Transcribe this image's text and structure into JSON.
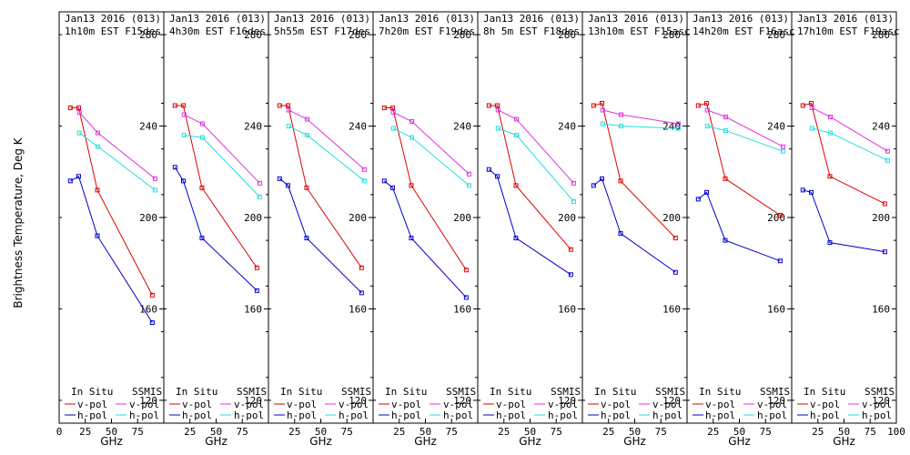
{
  "figure": {
    "ylabel": "Brightness Temperature, Deg K",
    "xlabel": "GHz",
    "legend": {
      "insitu": "In Situ",
      "ssmis": "SSMIS",
      "vpol": "v-pol",
      "hpol": "h-pol"
    },
    "colors": {
      "insitu_v": "#dd0000",
      "insitu_h": "#0000cc",
      "ssmis_v": "#dd33dd",
      "ssmis_h": "#22dddd"
    }
  },
  "chart_data": [
    {
      "type": "line",
      "title": "Jan13 2016 (013)",
      "subtitle": "1h10m EST F15des",
      "xlabel": "GHz",
      "ylabel": "Brightness Temperature, Deg K",
      "xlim": [
        0,
        100
      ],
      "ylim": [
        110,
        290
      ],
      "xticks": [
        "0",
        "25",
        "50",
        "75"
      ],
      "yticks": [
        "120",
        "160",
        "200",
        "240",
        "280"
      ],
      "series": [
        {
          "name": "In Situ v-pol",
          "x": [
            10.7,
            18.7,
            36.5,
            89
          ],
          "y": [
            248,
            248,
            212,
            166
          ]
        },
        {
          "name": "In Situ h-pol",
          "x": [
            10.7,
            18.7,
            36.5,
            89
          ],
          "y": [
            216,
            218,
            192,
            154
          ]
        },
        {
          "name": "SSMIS v-pol",
          "x": [
            19.35,
            37,
            91.65
          ],
          "y": [
            246,
            237,
            217
          ]
        },
        {
          "name": "SSMIS h-pol",
          "x": [
            19.35,
            37,
            91.65
          ],
          "y": [
            237,
            231,
            212
          ]
        }
      ]
    },
    {
      "type": "line",
      "title": "Jan13 2016 (013)",
      "subtitle": "4h30m EST F16des",
      "xlabel": "GHz",
      "ylabel": "Brightness Temperature, Deg K",
      "xlim": [
        0,
        100
      ],
      "ylim": [
        110,
        290
      ],
      "xticks": [
        "25",
        "50",
        "75"
      ],
      "yticks": [
        "120",
        "160",
        "200",
        "240",
        "280"
      ],
      "series": [
        {
          "name": "In Situ v-pol",
          "x": [
            10.7,
            18.7,
            36.5,
            89
          ],
          "y": [
            249,
            249,
            213,
            178
          ]
        },
        {
          "name": "In Situ h-pol",
          "x": [
            10.7,
            18.7,
            36.5,
            89
          ],
          "y": [
            222,
            216,
            191,
            168
          ]
        },
        {
          "name": "SSMIS v-pol",
          "x": [
            19.35,
            37,
            91.65
          ],
          "y": [
            245,
            241,
            215
          ]
        },
        {
          "name": "SSMIS h-pol",
          "x": [
            19.35,
            37,
            91.65
          ],
          "y": [
            236,
            235,
            209
          ]
        }
      ]
    },
    {
      "type": "line",
      "title": "Jan13 2016 (013)",
      "subtitle": "5h55m EST F17des",
      "xlabel": "GHz",
      "ylabel": "Brightness Temperature, Deg K",
      "xlim": [
        0,
        100
      ],
      "ylim": [
        110,
        290
      ],
      "xticks": [
        "25",
        "50",
        "75"
      ],
      "yticks": [
        "120",
        "160",
        "200",
        "240",
        "280"
      ],
      "series": [
        {
          "name": "In Situ v-pol",
          "x": [
            10.7,
            18.7,
            36.5,
            89
          ],
          "y": [
            249,
            249,
            213,
            178
          ]
        },
        {
          "name": "In Situ h-pol",
          "x": [
            10.7,
            18.7,
            36.5,
            89
          ],
          "y": [
            217,
            214,
            191,
            167
          ]
        },
        {
          "name": "SSMIS v-pol",
          "x": [
            19.35,
            37,
            91.65
          ],
          "y": [
            247,
            243,
            221
          ]
        },
        {
          "name": "SSMIS h-pol",
          "x": [
            19.35,
            37,
            91.65
          ],
          "y": [
            240,
            236,
            216
          ]
        }
      ]
    },
    {
      "type": "line",
      "title": "Jan13 2016 (013)",
      "subtitle": "7h20m EST F19des",
      "xlabel": "GHz",
      "ylabel": "Brightness Temperature, Deg K",
      "xlim": [
        0,
        100
      ],
      "ylim": [
        110,
        290
      ],
      "xticks": [
        "25",
        "50",
        "75"
      ],
      "yticks": [
        "120",
        "160",
        "200",
        "240",
        "280"
      ],
      "series": [
        {
          "name": "In Situ v-pol",
          "x": [
            10.7,
            18.7,
            36.5,
            89
          ],
          "y": [
            248,
            248,
            214,
            177
          ]
        },
        {
          "name": "In Situ h-pol",
          "x": [
            10.7,
            18.7,
            36.5,
            89
          ],
          "y": [
            216,
            213,
            191,
            165
          ]
        },
        {
          "name": "SSMIS v-pol",
          "x": [
            19.35,
            37,
            91.65
          ],
          "y": [
            246,
            242,
            219
          ]
        },
        {
          "name": "SSMIS h-pol",
          "x": [
            19.35,
            37,
            91.65
          ],
          "y": [
            239,
            235,
            214
          ]
        }
      ]
    },
    {
      "type": "line",
      "title": "Jan13 2016 (013)",
      "subtitle": "8h 5m EST F18des",
      "xlabel": "GHz",
      "ylabel": "Brightness Temperature, Deg K",
      "xlim": [
        0,
        100
      ],
      "ylim": [
        110,
        290
      ],
      "xticks": [
        "25",
        "50",
        "75"
      ],
      "yticks": [
        "120",
        "160",
        "200",
        "240",
        "280"
      ],
      "series": [
        {
          "name": "In Situ v-pol",
          "x": [
            10.7,
            18.7,
            36.5,
            89
          ],
          "y": [
            249,
            249,
            214,
            186
          ]
        },
        {
          "name": "In Situ h-pol",
          "x": [
            10.7,
            18.7,
            36.5,
            89
          ],
          "y": [
            221,
            218,
            191,
            175
          ]
        },
        {
          "name": "SSMIS v-pol",
          "x": [
            19.35,
            37,
            91.65
          ],
          "y": [
            247,
            243,
            215
          ]
        },
        {
          "name": "SSMIS h-pol",
          "x": [
            19.35,
            37,
            91.65
          ],
          "y": [
            239,
            236,
            207
          ]
        }
      ]
    },
    {
      "type": "line",
      "title": "Jan13 2016 (013)",
      "subtitle": "13h10m EST F15asc",
      "xlabel": "GHz",
      "ylabel": "Brightness Temperature, Deg K",
      "xlim": [
        0,
        100
      ],
      "ylim": [
        110,
        290
      ],
      "xticks": [
        "25",
        "50",
        "75"
      ],
      "yticks": [
        "120",
        "160",
        "200",
        "240",
        "280"
      ],
      "series": [
        {
          "name": "In Situ v-pol",
          "x": [
            10.7,
            18.7,
            36.5,
            89
          ],
          "y": [
            249,
            250,
            216,
            191
          ]
        },
        {
          "name": "In Situ h-pol",
          "x": [
            10.7,
            18.7,
            36.5,
            89
          ],
          "y": [
            214,
            217,
            193,
            176
          ]
        },
        {
          "name": "SSMIS v-pol",
          "x": [
            19.35,
            37,
            91.65
          ],
          "y": [
            247,
            245,
            241
          ]
        },
        {
          "name": "SSMIS h-pol",
          "x": [
            19.35,
            37,
            91.65
          ],
          "y": [
            241,
            240,
            239
          ]
        }
      ]
    },
    {
      "type": "line",
      "title": "Jan13 2016 (013)",
      "subtitle": "14h20m EST F16asc",
      "xlabel": "GHz",
      "ylabel": "Brightness Temperature, Deg K",
      "xlim": [
        0,
        100
      ],
      "ylim": [
        110,
        290
      ],
      "xticks": [
        "25",
        "50",
        "75"
      ],
      "yticks": [
        "120",
        "160",
        "200",
        "240",
        "280"
      ],
      "series": [
        {
          "name": "In Situ v-pol",
          "x": [
            10.7,
            18.7,
            36.5,
            89
          ],
          "y": [
            249,
            250,
            217,
            201
          ]
        },
        {
          "name": "In Situ h-pol",
          "x": [
            10.7,
            18.7,
            36.5,
            89
          ],
          "y": [
            208,
            211,
            190,
            181
          ]
        },
        {
          "name": "SSMIS v-pol",
          "x": [
            19.35,
            37,
            91.65
          ],
          "y": [
            247,
            244,
            231
          ]
        },
        {
          "name": "SSMIS h-pol",
          "x": [
            19.35,
            37,
            91.65
          ],
          "y": [
            240,
            238,
            229
          ]
        }
      ]
    },
    {
      "type": "line",
      "title": "Jan13 2016 (013)",
      "subtitle": "17h10m EST F19asc",
      "xlabel": "GHz",
      "ylabel": "Brightness Temperature, Deg K",
      "xlim": [
        0,
        100
      ],
      "ylim": [
        110,
        290
      ],
      "xticks": [
        "25",
        "50",
        "75",
        "100"
      ],
      "yticks": [
        "120",
        "160",
        "200",
        "240",
        "280"
      ],
      "series": [
        {
          "name": "In Situ v-pol",
          "x": [
            10.7,
            18.7,
            36.5,
            89
          ],
          "y": [
            249,
            250,
            218,
            206
          ]
        },
        {
          "name": "In Situ h-pol",
          "x": [
            10.7,
            18.7,
            36.5,
            89
          ],
          "y": [
            212,
            211,
            189,
            185
          ]
        },
        {
          "name": "SSMIS v-pol",
          "x": [
            19.35,
            37,
            91.65
          ],
          "y": [
            248,
            244,
            229
          ]
        },
        {
          "name": "SSMIS h-pol",
          "x": [
            19.35,
            37,
            91.65
          ],
          "y": [
            239,
            237,
            225
          ]
        }
      ]
    }
  ]
}
